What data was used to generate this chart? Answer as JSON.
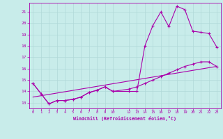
{
  "background_color": "#c8ecea",
  "grid_color": "#b0d8d8",
  "line_color": "#aa00aa",
  "xlabel": "Windchill (Refroidissement éolien,°C)",
  "xlim": [
    -0.5,
    23.5
  ],
  "ylim": [
    12.5,
    21.8
  ],
  "xticks": [
    0,
    1,
    2,
    3,
    4,
    5,
    6,
    7,
    8,
    9,
    10,
    12,
    13,
    14,
    15,
    16,
    17,
    18,
    19,
    20,
    21,
    22,
    23
  ],
  "yticks": [
    13,
    14,
    15,
    16,
    17,
    18,
    19,
    20,
    21
  ],
  "series1_x": [
    0,
    1,
    2,
    3,
    4,
    5,
    6,
    7,
    8,
    9,
    10,
    12,
    13,
    14,
    15,
    16,
    17,
    18,
    19,
    20,
    21,
    22,
    23
  ],
  "series1_y": [
    14.7,
    13.8,
    12.9,
    13.2,
    13.2,
    13.3,
    13.5,
    13.9,
    14.1,
    14.4,
    14.0,
    14.0,
    14.0,
    18.0,
    19.8,
    21.0,
    19.7,
    21.5,
    21.2,
    19.3,
    19.2,
    19.1,
    17.9
  ],
  "series2_x": [
    0,
    1,
    2,
    3,
    4,
    5,
    6,
    7,
    8,
    9,
    10,
    12,
    13,
    14,
    15,
    16,
    17,
    18,
    19,
    20,
    21,
    22,
    23
  ],
  "series2_y": [
    14.7,
    13.8,
    12.9,
    13.2,
    13.2,
    13.3,
    13.5,
    13.9,
    14.1,
    14.4,
    14.0,
    14.2,
    14.4,
    14.7,
    15.0,
    15.3,
    15.6,
    15.9,
    16.2,
    16.4,
    16.6,
    16.6,
    16.2
  ],
  "series3_x": [
    0,
    23
  ],
  "series3_y": [
    13.5,
    16.2
  ]
}
